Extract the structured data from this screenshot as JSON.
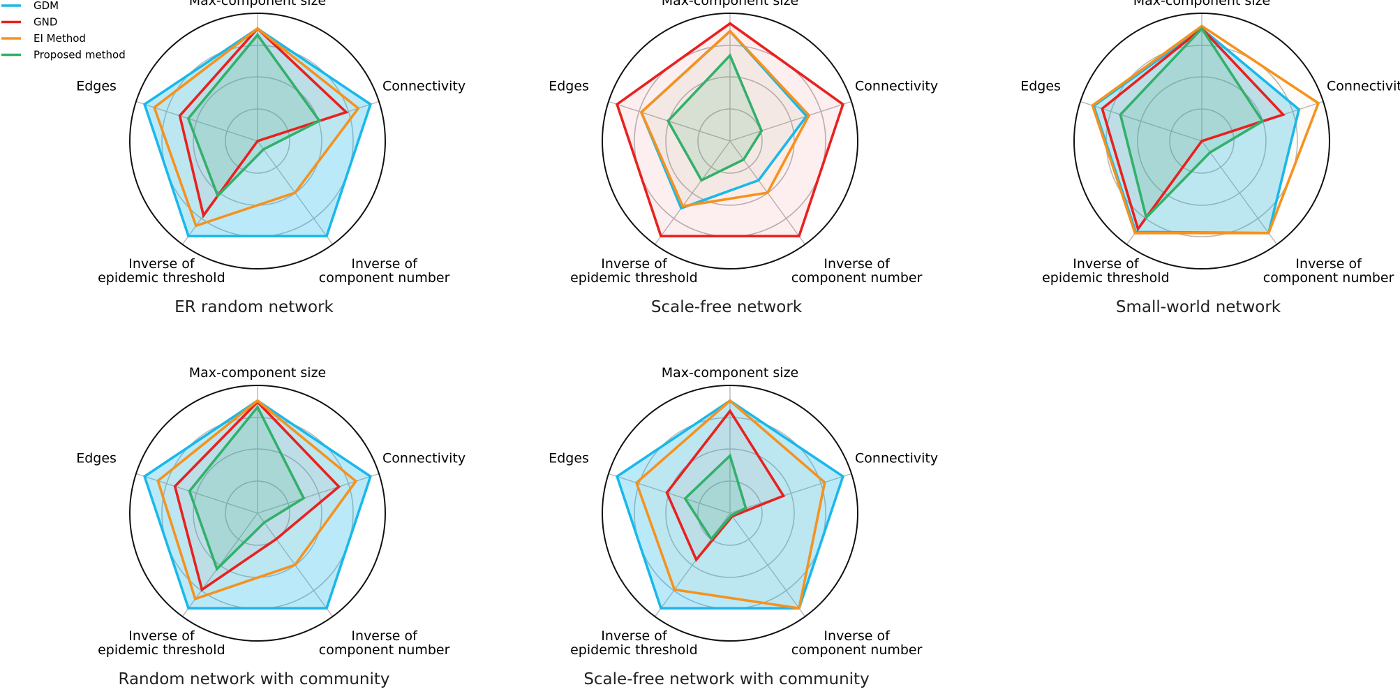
{
  "legend": [
    {
      "name": "GDM",
      "color": "#1ab8ea"
    },
    {
      "name": "GND",
      "color": "#e8211f"
    },
    {
      "name": "EI Method",
      "color": "#f5921e"
    },
    {
      "name": "Proposed method",
      "color": "#33b06b"
    }
  ],
  "chart_data": [
    {
      "type": "radar",
      "title": "ER random network",
      "axes": [
        "Max-component size",
        "Connectivity",
        "Inverse of\ncomponent number",
        "Inverse of\nepidemic threshold",
        "Edges"
      ],
      "rmax": 1.0,
      "grid": [
        0.25,
        0.5,
        0.75,
        1.0
      ],
      "filled_series": "GDM",
      "series": [
        {
          "name": "GDM",
          "values": [
            0.88,
            0.93,
            0.92,
            0.92,
            0.93
          ]
        },
        {
          "name": "GND",
          "values": [
            0.88,
            0.73,
            0.0,
            0.72,
            0.64
          ]
        },
        {
          "name": "EI Method",
          "values": [
            0.88,
            0.83,
            0.5,
            0.82,
            0.85
          ]
        },
        {
          "name": "Proposed method",
          "values": [
            0.83,
            0.51,
            0.08,
            0.53,
            0.57
          ]
        }
      ]
    },
    {
      "type": "radar",
      "title": "Scale-free network",
      "axes": [
        "Max-component size",
        "Connectivity",
        "Inverse of\ncomponent number",
        "Inverse of\nepidemic threshold",
        "Edges"
      ],
      "rmax": 1.0,
      "grid": [
        0.25,
        0.5,
        0.75,
        1.0
      ],
      "filled_series": "GND",
      "series": [
        {
          "name": "GDM",
          "values": [
            0.86,
            0.63,
            0.38,
            0.65,
            0.73
          ]
        },
        {
          "name": "GND",
          "values": [
            0.92,
            0.93,
            0.92,
            0.92,
            0.93
          ]
        },
        {
          "name": "EI Method",
          "values": [
            0.86,
            0.65,
            0.5,
            0.63,
            0.73
          ]
        },
        {
          "name": "Proposed method",
          "values": [
            0.67,
            0.26,
            0.18,
            0.38,
            0.51
          ]
        }
      ]
    },
    {
      "type": "radar",
      "title": "Small-world network",
      "axes": [
        "Max-component size",
        "Connectivity",
        "Inverse of\ncomponent number",
        "Inverse of\nepidemic threshold",
        "Edges"
      ],
      "rmax": 1.0,
      "grid": [
        0.25,
        0.5,
        0.75,
        1.0
      ],
      "filled_series": "GDM",
      "series": [
        {
          "name": "GDM",
          "values": [
            0.88,
            0.8,
            0.89,
            0.88,
            0.89
          ]
        },
        {
          "name": "GND",
          "values": [
            0.88,
            0.67,
            0.0,
            0.85,
            0.82
          ]
        },
        {
          "name": "EI Method",
          "values": [
            0.9,
            0.96,
            0.89,
            0.89,
            0.9
          ]
        },
        {
          "name": "Proposed method",
          "values": [
            0.88,
            0.5,
            0.11,
            0.74,
            0.67
          ]
        }
      ]
    },
    {
      "type": "radar",
      "title": "Random network with community",
      "axes": [
        "Max-component size",
        "Connectivity",
        "Inverse of\ncomponent number",
        "Inverse of\nepidemic threshold",
        "Edges"
      ],
      "rmax": 1.0,
      "grid": [
        0.25,
        0.5,
        0.75,
        1.0
      ],
      "filled_series": "GDM",
      "series": [
        {
          "name": "GDM",
          "values": [
            0.88,
            0.93,
            0.92,
            0.92,
            0.93
          ]
        },
        {
          "name": "GND",
          "values": [
            0.87,
            0.67,
            0.25,
            0.74,
            0.68
          ]
        },
        {
          "name": "EI Method",
          "values": [
            0.88,
            0.81,
            0.5,
            0.83,
            0.82
          ]
        },
        {
          "name": "Proposed method",
          "values": [
            0.83,
            0.38,
            0.09,
            0.54,
            0.56
          ]
        }
      ]
    },
    {
      "type": "radar",
      "title": "Scale-free network with community",
      "axes": [
        "Max-component size",
        "Connectivity",
        "Inverse of\ncomponent number",
        "Inverse of\nepidemic threshold",
        "Edges"
      ],
      "rmax": 1.0,
      "grid": [
        0.25,
        0.5,
        0.75,
        1.0
      ],
      "filled_series": "GDM",
      "series": [
        {
          "name": "GDM",
          "values": [
            0.88,
            0.93,
            0.92,
            0.92,
            0.93
          ]
        },
        {
          "name": "GND",
          "values": [
            0.8,
            0.44,
            0.03,
            0.45,
            0.52
          ]
        },
        {
          "name": "EI Method",
          "values": [
            0.88,
            0.78,
            0.92,
            0.74,
            0.77
          ]
        },
        {
          "name": "Proposed method",
          "values": [
            0.45,
            0.13,
            0.02,
            0.25,
            0.37
          ]
        }
      ]
    }
  ]
}
